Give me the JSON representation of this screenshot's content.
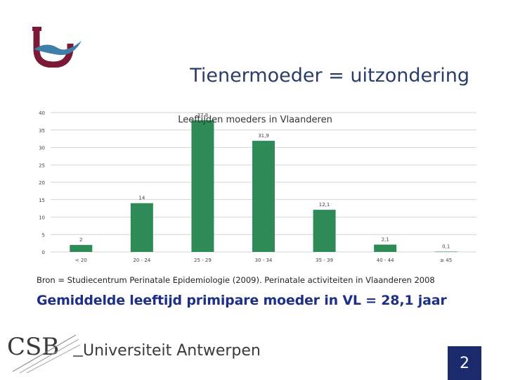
{
  "slide": {
    "title": "Tienermoeder = uitzondering",
    "source": "Bron = Studiecentrum Perinatale Epidemiologie (2009). Perinatale activiteiten in Vlaanderen 2008",
    "highlight": "Gemiddelde leeftijd primipare moeder in VL = 28,1 jaar",
    "footer_name": "Universiteit Antwerpen",
    "footer_logo_text": "CSB",
    "page_number": "2"
  },
  "colors": {
    "title": "#2b3c6a",
    "bar": "#2e8b57",
    "highlight": "#1e2f86",
    "page_box": "#1a2a6c",
    "logo_maroon": "#7a1a36",
    "logo_blue": "#3f7fa8"
  },
  "chart_data": {
    "type": "bar",
    "title": "Leeftijden moeders in Vlaanderen",
    "categories": [
      "< 20",
      "20 - 24",
      "25 - 29",
      "30 - 34",
      "35 - 39",
      "40 - 44",
      "≥ 45"
    ],
    "values": [
      2,
      14,
      37.8,
      31.9,
      12.1,
      2.1,
      0.1
    ],
    "value_labels": [
      "2",
      "14",
      "37,8",
      "31,9",
      "12,1",
      "2,1",
      "0,1"
    ],
    "ylim": [
      0,
      40
    ],
    "yticks": [
      0,
      5,
      10,
      15,
      20,
      25,
      30,
      35,
      40
    ],
    "grid": true,
    "legend": "none"
  }
}
